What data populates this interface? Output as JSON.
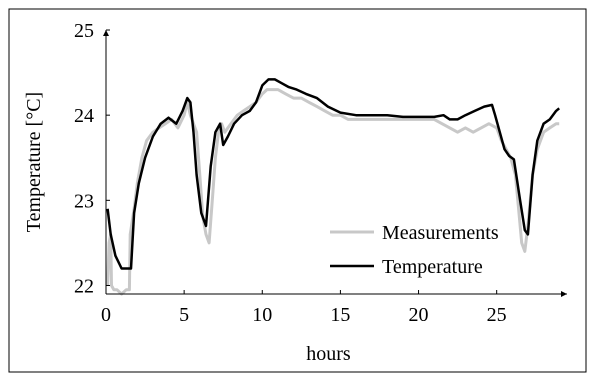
{
  "chart_data": {
    "type": "line",
    "xlabel": "hours",
    "ylabel": "Temperature [°C]",
    "xlim": [
      0,
      29.5
    ],
    "ylim": [
      21.9,
      25
    ],
    "x_ticks": [
      0,
      5,
      10,
      15,
      20,
      25
    ],
    "y_ticks": [
      22,
      23,
      24,
      25
    ],
    "grid": false,
    "legend_position": "lower-right",
    "series": [
      {
        "name": "Measurements",
        "color": "#c8c8c8",
        "x": [
          0.1,
          0.2,
          0.3,
          0.35,
          0.5,
          0.7,
          1.0,
          1.3,
          1.5,
          1.55,
          1.8,
          2.0,
          2.3,
          2.6,
          3.0,
          3.4,
          3.8,
          4.2,
          4.6,
          5.0,
          5.2,
          5.4,
          5.6,
          5.8,
          6.0,
          6.2,
          6.4,
          6.6,
          6.8,
          7.0,
          7.2,
          7.4,
          7.6,
          7.8,
          8.0,
          8.4,
          8.8,
          9.2,
          9.6,
          10.0,
          10.3,
          10.6,
          11.0,
          11.5,
          12.0,
          12.5,
          13.0,
          13.5,
          14.0,
          14.5,
          15.0,
          15.5,
          16.0,
          17.0,
          18.0,
          19.0,
          20.0,
          21.0,
          21.5,
          22.0,
          22.5,
          23.0,
          23.5,
          24.0,
          24.5,
          25.0,
          25.3,
          25.6,
          25.9,
          26.2,
          26.4,
          26.6,
          26.8,
          27.0,
          27.3,
          27.6,
          28.0,
          28.4,
          28.8,
          29.0
        ],
        "y": [
          22.0,
          22.5,
          22.6,
          22.0,
          21.95,
          21.95,
          21.9,
          21.95,
          21.95,
          22.6,
          22.9,
          23.2,
          23.5,
          23.7,
          23.8,
          23.85,
          23.9,
          23.95,
          23.85,
          24.0,
          24.15,
          24.0,
          23.9,
          23.8,
          23.3,
          22.8,
          22.6,
          22.5,
          23.0,
          23.5,
          23.8,
          23.9,
          23.8,
          23.85,
          23.9,
          24.0,
          24.05,
          24.1,
          24.15,
          24.25,
          24.3,
          24.3,
          24.3,
          24.25,
          24.2,
          24.2,
          24.15,
          24.1,
          24.05,
          24.0,
          24.0,
          23.95,
          23.95,
          23.95,
          23.95,
          23.95,
          23.95,
          23.95,
          23.9,
          23.85,
          23.8,
          23.85,
          23.8,
          23.85,
          23.9,
          23.85,
          23.7,
          23.6,
          23.5,
          23.3,
          22.9,
          22.5,
          22.4,
          22.7,
          23.3,
          23.6,
          23.8,
          23.85,
          23.9,
          23.9
        ]
      },
      {
        "name": "Temperature",
        "color": "#000000",
        "x": [
          0.1,
          0.3,
          0.6,
          1.0,
          1.4,
          1.6,
          1.8,
          2.1,
          2.5,
          3.0,
          3.5,
          4.0,
          4.5,
          4.9,
          5.2,
          5.4,
          5.6,
          5.8,
          6.1,
          6.4,
          6.7,
          7.0,
          7.3,
          7.5,
          7.8,
          8.2,
          8.7,
          9.2,
          9.6,
          10.0,
          10.4,
          10.8,
          11.2,
          11.7,
          12.2,
          12.8,
          13.5,
          14.2,
          15.0,
          16.0,
          17.0,
          18.0,
          19.0,
          20.0,
          21.0,
          21.6,
          22.0,
          22.5,
          23.0,
          23.6,
          24.2,
          24.7,
          24.9,
          25.2,
          25.5,
          25.8,
          26.1,
          26.5,
          26.8,
          27.0,
          27.3,
          27.6,
          28.0,
          28.4,
          28.8,
          29.0
        ],
        "y": [
          22.9,
          22.6,
          22.35,
          22.2,
          22.2,
          22.2,
          22.85,
          23.2,
          23.5,
          23.75,
          23.9,
          23.97,
          23.9,
          24.05,
          24.2,
          24.15,
          23.8,
          23.3,
          22.85,
          22.7,
          23.4,
          23.8,
          23.9,
          23.65,
          23.75,
          23.9,
          24.0,
          24.05,
          24.15,
          24.35,
          24.42,
          24.42,
          24.38,
          24.33,
          24.3,
          24.25,
          24.2,
          24.1,
          24.03,
          24.0,
          24.0,
          24.0,
          23.98,
          23.98,
          23.98,
          24.0,
          23.95,
          23.95,
          24.0,
          24.05,
          24.1,
          24.12,
          24.0,
          23.8,
          23.6,
          23.52,
          23.48,
          23.0,
          22.65,
          22.6,
          23.3,
          23.7,
          23.9,
          23.95,
          24.05,
          24.08
        ]
      }
    ]
  }
}
